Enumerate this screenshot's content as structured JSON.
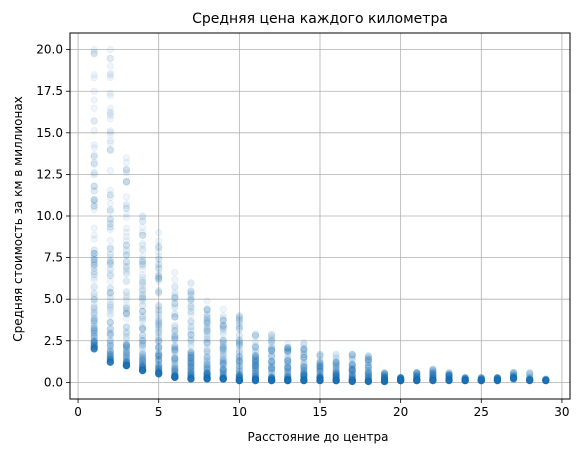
{
  "chart_data": {
    "type": "scatter",
    "title": "Средняя цена каждого километра",
    "xlabel": "Расстояние до центра",
    "ylabel": "Средняя стоимость за км в миллионах",
    "xlim": [
      -0.5,
      30.5
    ],
    "ylim": [
      -1.0,
      21.0
    ],
    "xticks": [
      0,
      5,
      10,
      15,
      20,
      25,
      30
    ],
    "xtick_labels": [
      "0",
      "5",
      "10",
      "15",
      "20",
      "25",
      "30"
    ],
    "yticks": [
      0.0,
      2.5,
      5.0,
      7.5,
      10.0,
      12.5,
      15.0,
      17.5,
      20.0
    ],
    "ytick_labels": [
      "0.0",
      "2.5",
      "5.0",
      "7.5",
      "10.0",
      "12.5",
      "15.0",
      "17.5",
      "20.0"
    ],
    "grid": true,
    "marker_color": "#1f77b4",
    "marker_alpha": 0.07,
    "series": [
      {
        "points_by_distance": [
          {
            "x": 1,
            "range": [
              2.0,
              20.0
            ]
          },
          {
            "x": 2,
            "range": [
              1.2,
              20.0
            ]
          },
          {
            "x": 3,
            "range": [
              1.0,
              13.5
            ]
          },
          {
            "x": 4,
            "range": [
              0.7,
              10.0
            ]
          },
          {
            "x": 5,
            "range": [
              0.5,
              9.0
            ]
          },
          {
            "x": 6,
            "range": [
              0.3,
              6.6
            ]
          },
          {
            "x": 7,
            "range": [
              0.2,
              6.0
            ]
          },
          {
            "x": 8,
            "range": [
              0.2,
              4.9
            ]
          },
          {
            "x": 9,
            "range": [
              0.2,
              4.4
            ]
          },
          {
            "x": 10,
            "range": [
              0.1,
              4.0
            ]
          },
          {
            "x": 11,
            "range": [
              0.1,
              2.9
            ]
          },
          {
            "x": 12,
            "range": [
              0.1,
              2.9
            ]
          },
          {
            "x": 13,
            "range": [
              0.1,
              2.3
            ]
          },
          {
            "x": 14,
            "range": [
              0.1,
              2.4
            ]
          },
          {
            "x": 15,
            "range": [
              0.1,
              1.7
            ]
          },
          {
            "x": 16,
            "range": [
              0.1,
              1.7
            ]
          },
          {
            "x": 17,
            "range": [
              0.05,
              1.7
            ]
          },
          {
            "x": 18,
            "range": [
              0.05,
              1.6
            ]
          },
          {
            "x": 19,
            "range": [
              0.05,
              0.6
            ]
          },
          {
            "x": 20,
            "range": [
              0.1,
              0.3
            ]
          },
          {
            "x": 21,
            "range": [
              0.1,
              0.6
            ]
          },
          {
            "x": 22,
            "range": [
              0.1,
              0.8
            ]
          },
          {
            "x": 23,
            "range": [
              0.1,
              0.6
            ]
          },
          {
            "x": 24,
            "range": [
              0.1,
              0.3
            ]
          },
          {
            "x": 25,
            "range": [
              0.1,
              0.3
            ]
          },
          {
            "x": 26,
            "range": [
              0.1,
              0.3
            ]
          },
          {
            "x": 27,
            "range": [
              0.2,
              0.6
            ]
          },
          {
            "x": 28,
            "range": [
              0.1,
              0.6
            ]
          },
          {
            "x": 29,
            "range": [
              0.1,
              0.2
            ]
          }
        ]
      }
    ]
  }
}
